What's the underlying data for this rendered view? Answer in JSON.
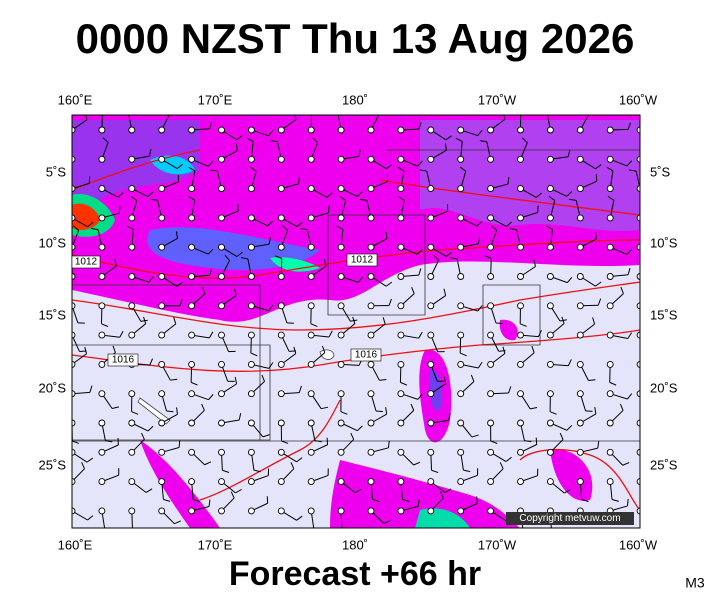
{
  "header": {
    "title": "0000 NZST Thu 13 Aug 2026"
  },
  "map": {
    "lon_labels": [
      "160˚E",
      "170˚E",
      "180˚",
      "170˚W",
      "160˚W"
    ],
    "lat_labels": [
      "5˚S",
      "10˚S",
      "15˚S",
      "20˚S",
      "25˚S"
    ],
    "isobar_labels": [
      "1012",
      "1012",
      "1016",
      "1016"
    ],
    "copyright": "Copyright metvuw.com"
  },
  "footer": {
    "forecast": "Forecast +66 hr",
    "model": "M3"
  }
}
